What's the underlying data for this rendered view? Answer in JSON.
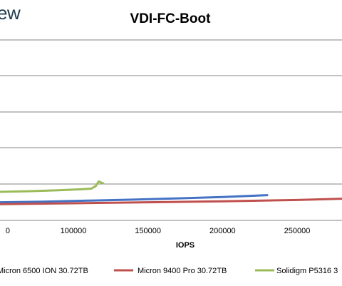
{
  "brand": {
    "text": "ew"
  },
  "chart_data": {
    "type": "line",
    "title": "VDI-FC-Boot",
    "xlabel": "IOPS",
    "ylabel": "",
    "x_ticks": [
      "100000",
      "150000",
      "200000",
      "250000"
    ],
    "x_tick_values": [
      100000,
      150000,
      200000,
      250000
    ],
    "x_visible_range": [
      50000,
      290000
    ],
    "y_visible_range": [
      0,
      5.6
    ],
    "grid": true,
    "legend_position": "bottom",
    "series": [
      {
        "name": "Micron 6500 ION 30.72TB",
        "color": "#4472c4",
        "points": [
          [
            50000,
            0.58
          ],
          [
            80000,
            0.6
          ],
          [
            110000,
            0.63
          ],
          [
            140000,
            0.66
          ],
          [
            170000,
            0.7
          ],
          [
            200000,
            0.74
          ],
          [
            230000,
            0.8
          ]
        ]
      },
      {
        "name": "Micron 9400 Pro 30.72TB",
        "color": "#c0504d",
        "points": [
          [
            50000,
            0.52
          ],
          [
            100000,
            0.55
          ],
          [
            150000,
            0.58
          ],
          [
            200000,
            0.61
          ],
          [
            250000,
            0.65
          ],
          [
            290000,
            0.7
          ]
        ]
      },
      {
        "name": "Solidigm P5316 3",
        "color": "#9bbb59",
        "points": [
          [
            50000,
            0.9
          ],
          [
            70000,
            0.92
          ],
          [
            90000,
            0.95
          ],
          [
            105000,
            0.98
          ],
          [
            112000,
            1.0
          ],
          [
            115000,
            1.08
          ],
          [
            117000,
            1.22
          ],
          [
            120000,
            1.16
          ]
        ]
      }
    ]
  }
}
